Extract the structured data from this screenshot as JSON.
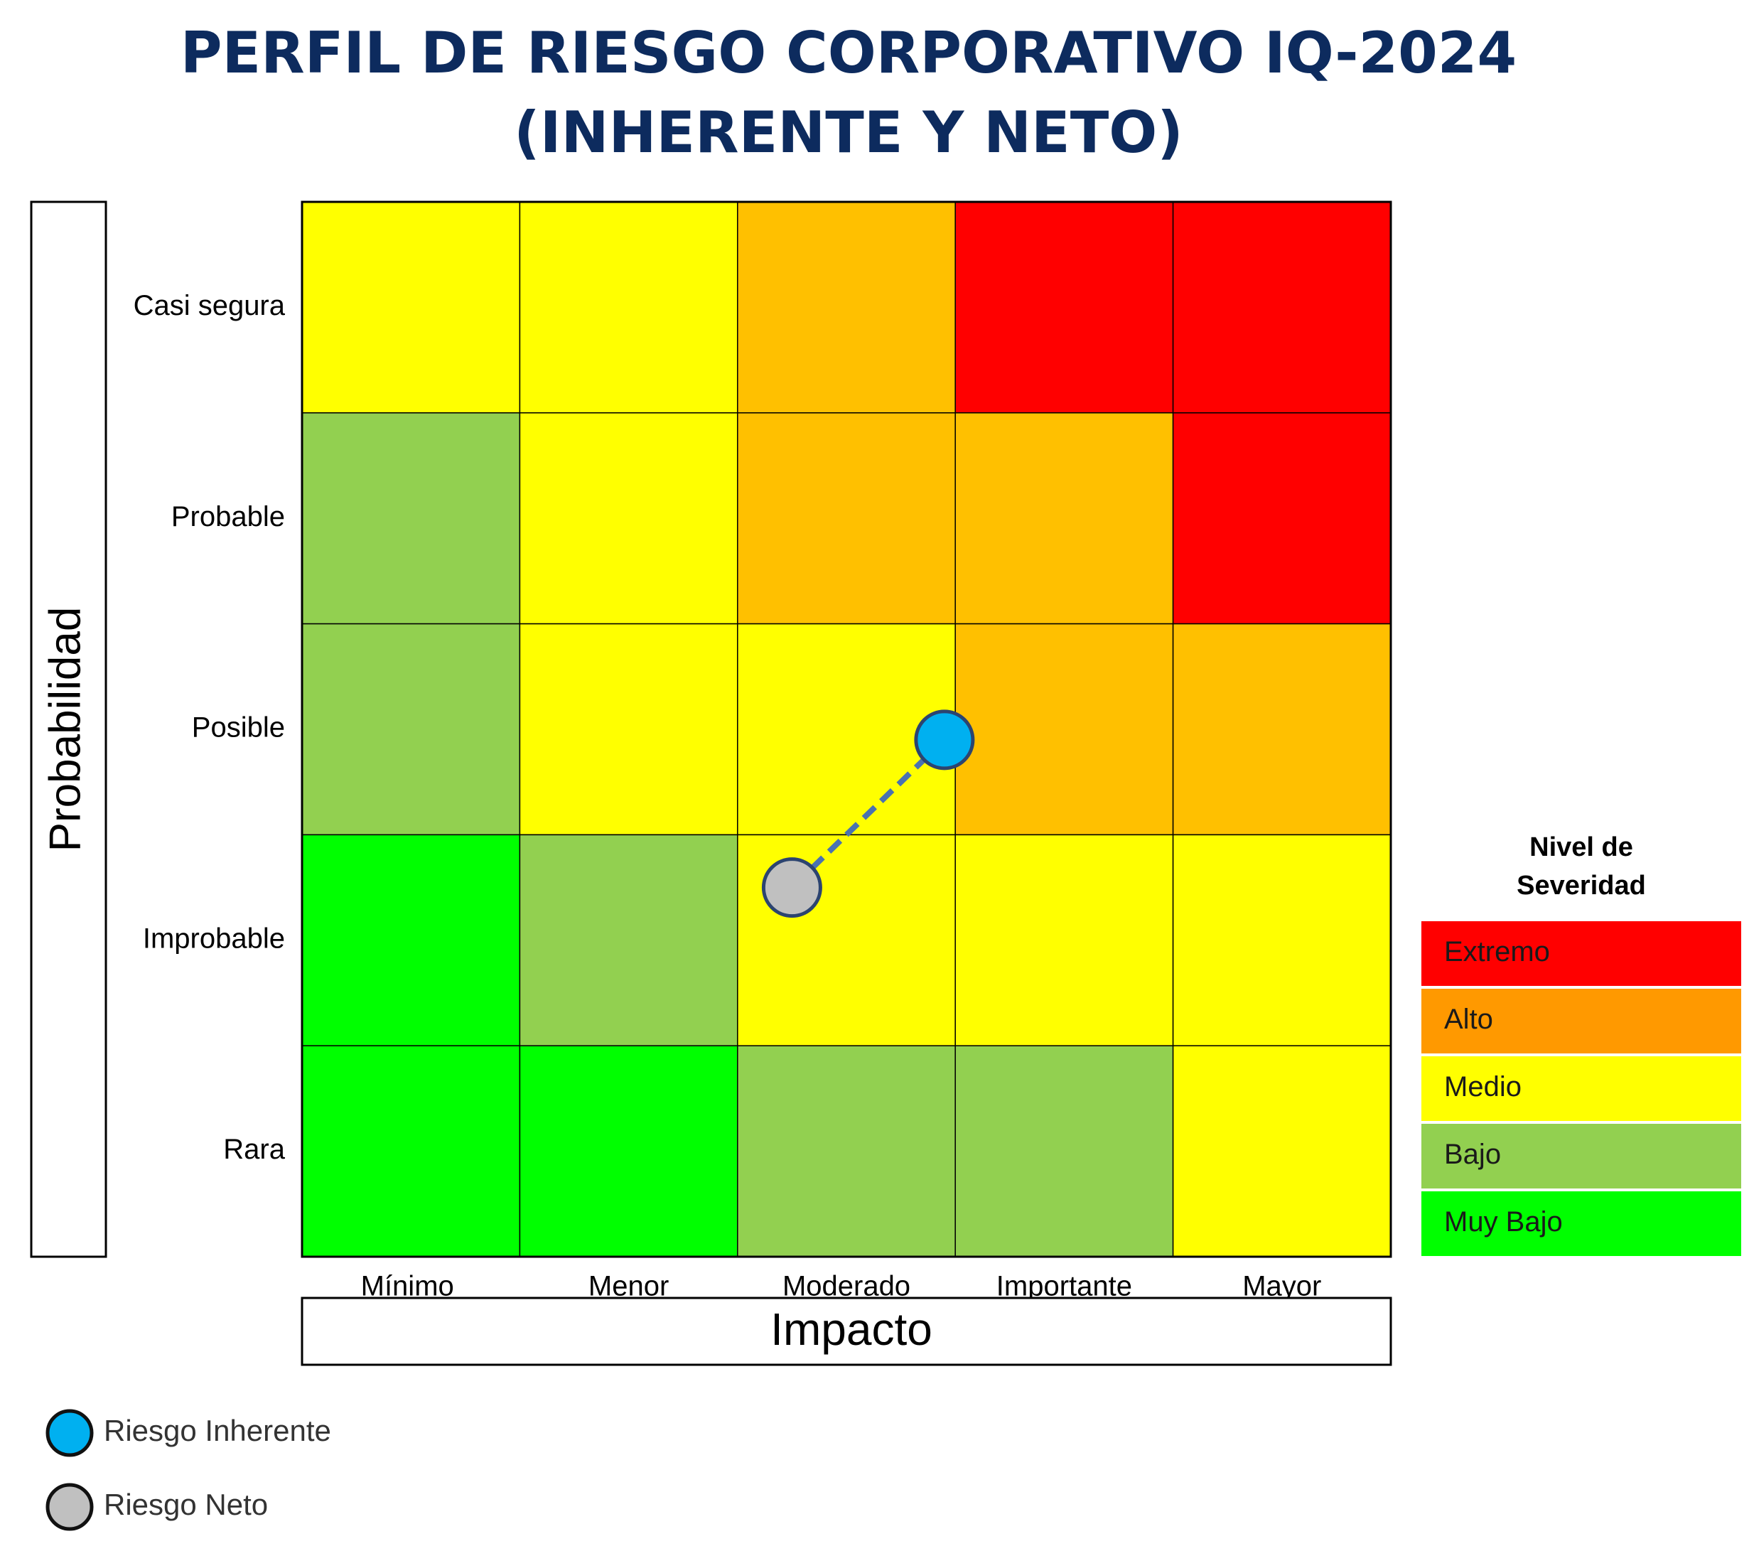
{
  "chart_data": {
    "type": "heatmap",
    "title_line1": "PERFIL DE RIESGO CORPORATIVO IQ-2024",
    "title_line2": "(INHERENTE Y NETO)",
    "xlabel": "Impacto",
    "ylabel": "Probabilidad",
    "x_categories": [
      "Mínimo",
      "Menor",
      "Moderado",
      "Importante",
      "Mayor"
    ],
    "y_categories": [
      "Casi segura",
      "Probable",
      "Posible",
      "Improbable",
      "Rara"
    ],
    "severity_levels": [
      {
        "label": "Extremo",
        "color": "#ff0000"
      },
      {
        "label": "Alto",
        "color": "#ff9900"
      },
      {
        "label": "Medio",
        "color": "#ffff00"
      },
      {
        "label": "Bajo",
        "color": "#92d050"
      },
      {
        "label": "Muy Bajo",
        "color": "#00ff00"
      }
    ],
    "cell_colors": [
      [
        "#ffff00",
        "#ffff00",
        "#ffc000",
        "#ff0000",
        "#ff0000"
      ],
      [
        "#92d050",
        "#ffff00",
        "#ffc000",
        "#ffc000",
        "#ff0000"
      ],
      [
        "#92d050",
        "#ffff00",
        "#ffff00",
        "#ffc000",
        "#ffc000"
      ],
      [
        "#00ff00",
        "#92d050",
        "#ffff00",
        "#ffff00",
        "#ffff00"
      ],
      [
        "#00ff00",
        "#00ff00",
        "#92d050",
        "#92d050",
        "#ffff00"
      ]
    ],
    "legend_title_line1": "Nivel de",
    "legend_title_line2": "Severidad",
    "points": [
      {
        "name": "Riesgo Inherente",
        "impact": 3.45,
        "probability": 2.95,
        "color": "#00b0f0"
      },
      {
        "name": "Riesgo Neto",
        "impact": 2.75,
        "probability": 2.25,
        "color": "#c0c0c0"
      }
    ],
    "title_color": "#0d2b5e",
    "connector_color": "#4a72b0"
  }
}
